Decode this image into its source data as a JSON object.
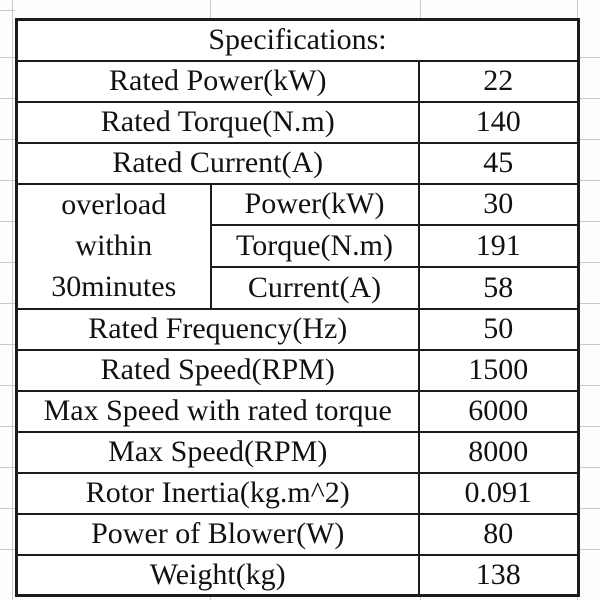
{
  "table": {
    "title": "Specifications:",
    "rows": [
      {
        "label": "Rated Power(kW)",
        "value": "22"
      },
      {
        "label": "Rated Torque(N.m)",
        "value": "140"
      },
      {
        "label": "Rated Current(A)",
        "value": "45"
      },
      {
        "label": "Rated Frequency(Hz)",
        "value": "50"
      },
      {
        "label": "Rated Speed(RPM)",
        "value": "1500"
      },
      {
        "label": "Max Speed with rated torque",
        "value": "6000"
      },
      {
        "label": "Max Speed(RPM)",
        "value": "8000"
      },
      {
        "label": "Rotor Inertia(kg.m^2)",
        "value": "0.091"
      },
      {
        "label": "Power of Blower(W)",
        "value": "80"
      },
      {
        "label": "Weight(kg)",
        "value": "138"
      }
    ],
    "overload_group": {
      "label_lines": [
        "overload",
        "within",
        "30minutes"
      ],
      "items": [
        {
          "label": "Power(kW)",
          "value": "30"
        },
        {
          "label": "Torque(N.m)",
          "value": "191"
        },
        {
          "label": "Current(A)",
          "value": "58"
        }
      ]
    },
    "colors": {
      "border": "#1c1c1c",
      "text": "#111111",
      "background": "#ffffff",
      "faint_gridline": "#c9c9c9"
    }
  }
}
